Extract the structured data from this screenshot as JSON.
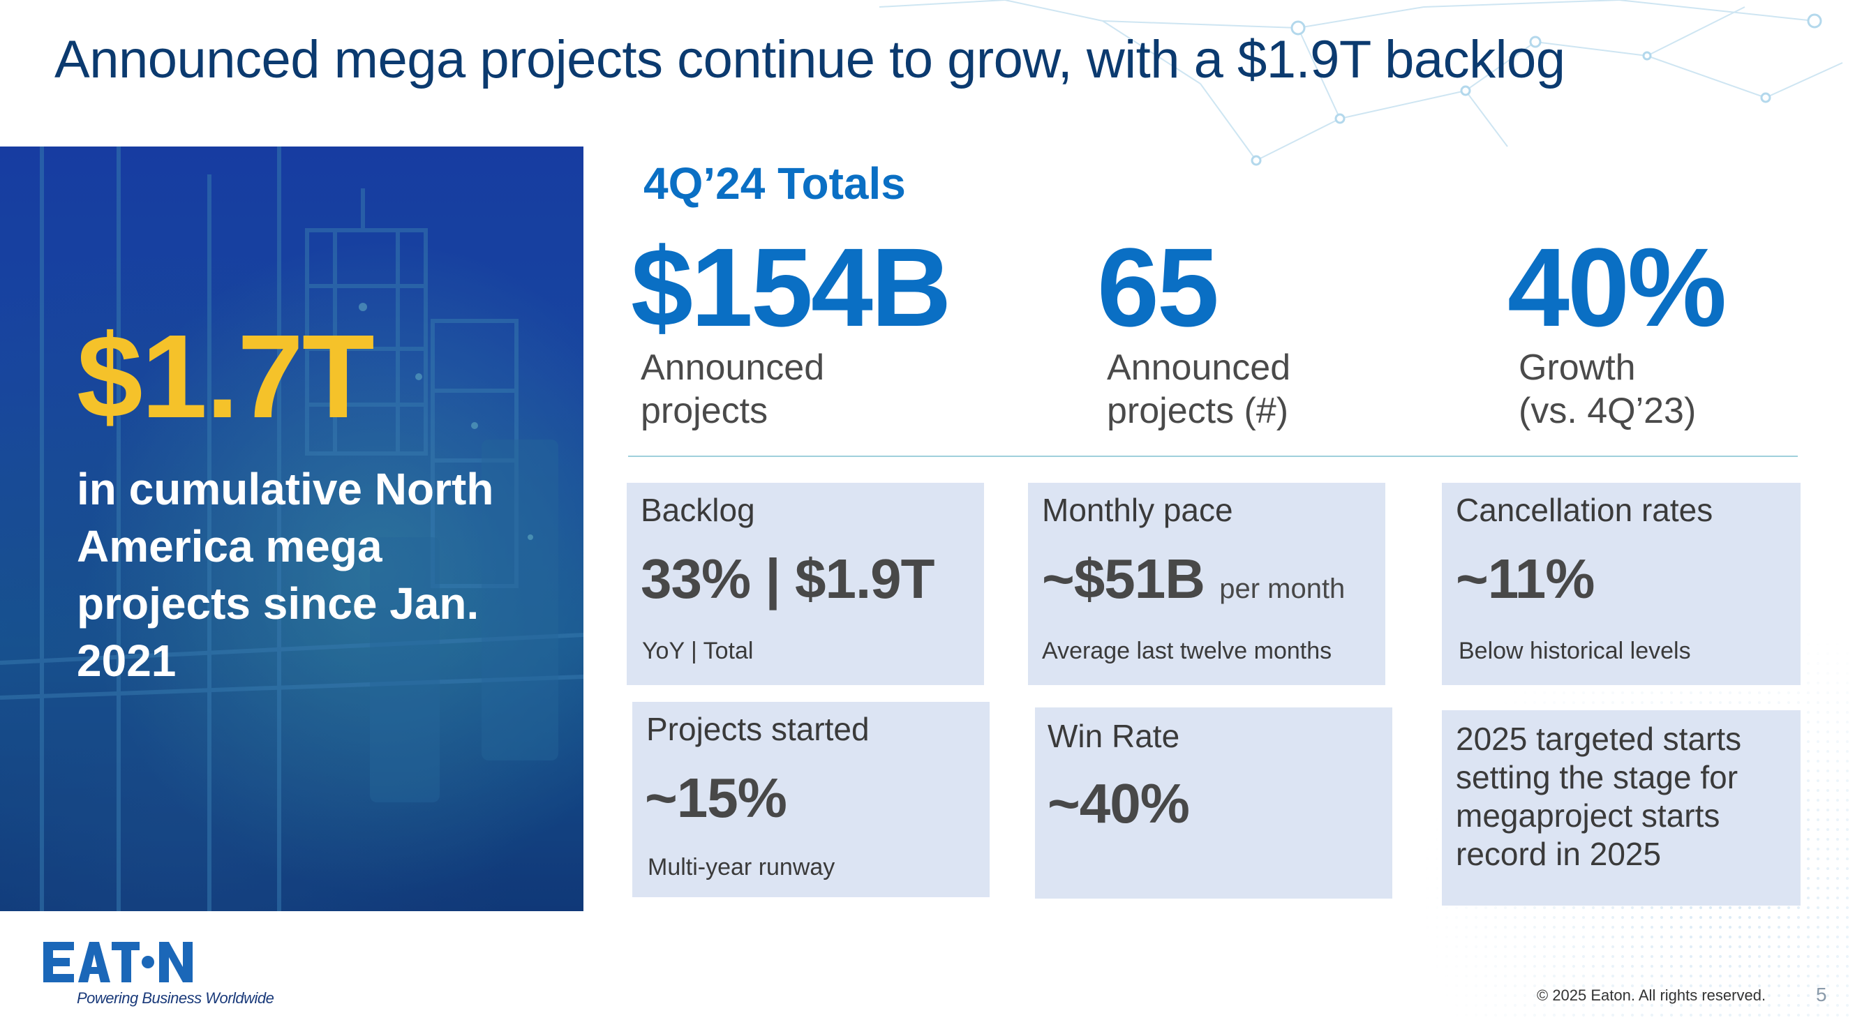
{
  "title": "Announced mega projects continue to grow, with a $1.9T backlog",
  "hero": {
    "value": "$1.7T",
    "text": "in cumulative North America mega projects since Jan. 2021"
  },
  "totals": {
    "heading": "4Q’24 Totals",
    "kpis": [
      {
        "value": "$154B",
        "label_line1": "Announced",
        "label_line2": "projects"
      },
      {
        "value": "65",
        "label_line1": "Announced",
        "label_line2": "projects (#)"
      },
      {
        "value": "40%",
        "label_line1": "Growth",
        "label_line2": "(vs. 4Q’23)"
      }
    ]
  },
  "cards": {
    "backlog": {
      "title": "Backlog",
      "value": "33% | $1.9T",
      "sub": "YoY | Total"
    },
    "monthly_pace": {
      "title": "Monthly pace",
      "value": "~$51B",
      "value_suffix": "per month",
      "sub": "Average last twelve months"
    },
    "cancellation": {
      "title": "Cancellation rates",
      "value": "~11%",
      "sub": "Below historical levels"
    },
    "projects_started": {
      "title": "Projects started",
      "value": "~15%",
      "sub": "Multi-year runway"
    },
    "win_rate": {
      "title": "Win Rate",
      "value": "~40%"
    },
    "targeted_starts": {
      "text": "2025 targeted starts setting the stage for megaproject starts record in 2025"
    }
  },
  "footer": {
    "logo": "EATON",
    "tagline": "Powering Business Worldwide",
    "copyright": "© 2025 Eaton. All rights reserved.",
    "page_number": "5"
  },
  "colors": {
    "title": "#0b3a6f",
    "accent_blue": "#0a6fc4",
    "hero_gold": "#f5c22a",
    "card_bg": "#dce4f3"
  }
}
